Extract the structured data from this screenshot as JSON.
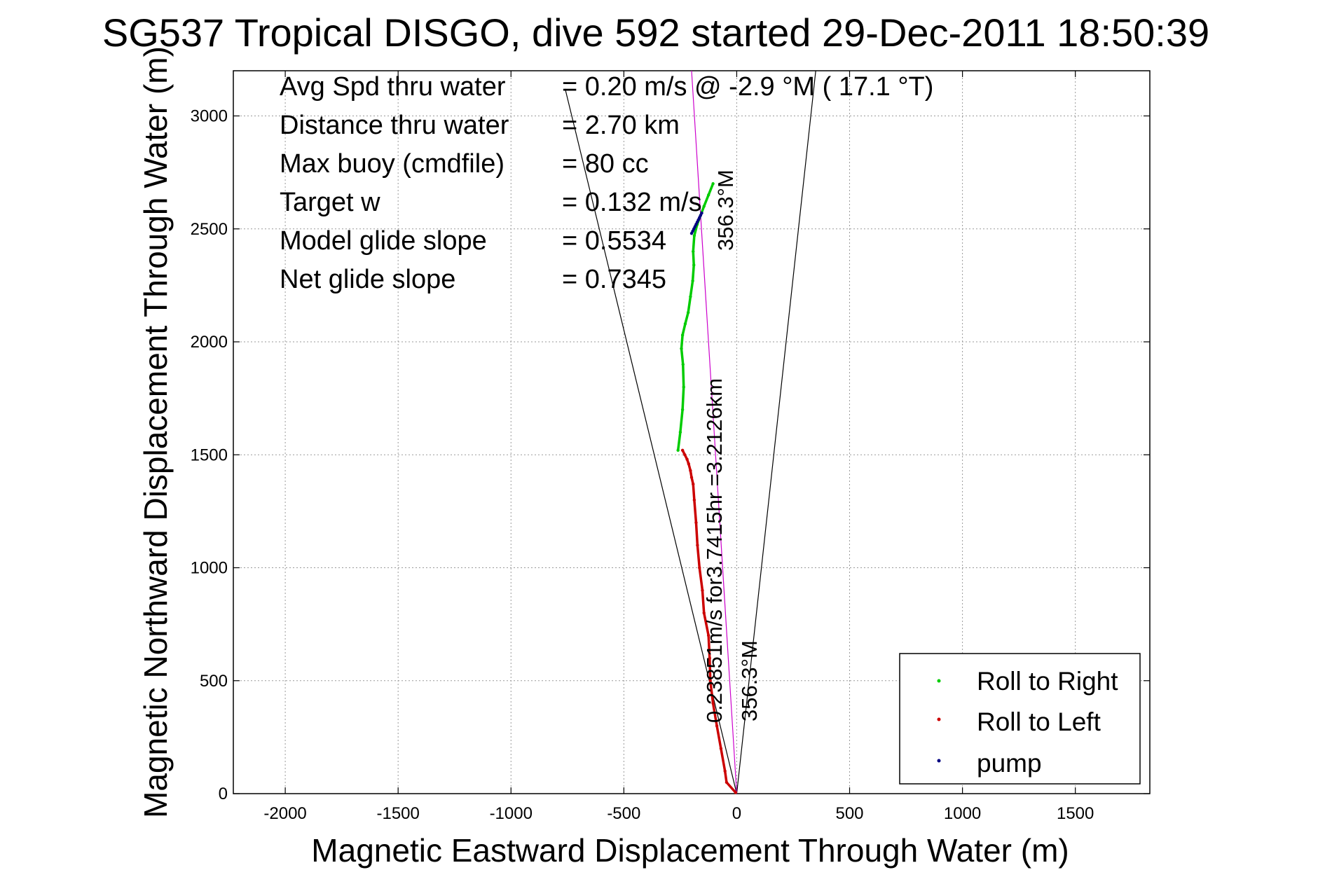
{
  "chart_data": {
    "type": "line",
    "title": "SG537 Tropical DISGO, dive 592 started 29-Dec-2011 18:50:39",
    "xlabel": "Magnetic Eastward Displacement Through Water (m)",
    "ylabel": "Magnetic Northward Displacement Through Water (m)",
    "xlim": [
      -2230,
      1830
    ],
    "ylim": [
      0,
      3200
    ],
    "xticks": [
      -2000,
      -1500,
      -1000,
      -500,
      0,
      500,
      1000,
      1500
    ],
    "yticks": [
      0,
      500,
      1000,
      1500,
      2000,
      2500,
      3000
    ],
    "grid": true,
    "legend_position": "bottom-right",
    "stats": [
      {
        "label": "Avg Spd thru water",
        "value": "=  0.20 m/s @  -2.9 °M ( 17.1 °T)"
      },
      {
        "label": "Distance thru water",
        "value": "=  2.70 km"
      },
      {
        "label": "Max buoy (cmdfile)",
        "value": "= 80 cc"
      },
      {
        "label": "Target w",
        "value": "= 0.132 m/s"
      },
      {
        "label": "Model glide slope",
        "value": "= 0.5534"
      },
      {
        "label": "Net glide slope",
        "value": "= 0.7345"
      }
    ],
    "annotations": [
      {
        "text": "0.23851m/s for3.7415hr =3.2126km",
        "x": -65,
        "y": 300
      },
      {
        "text": "356.3°M",
        "x": 75,
        "y": 300
      },
      {
        "text": "356.3°M",
        "x": -20,
        "y": 2420
      }
    ],
    "series": [
      {
        "name": "Roll to Right",
        "color": "#00cc00",
        "x": [
          -260,
          -250,
          -240,
          -235,
          -238,
          -245,
          -240,
          -228,
          -215,
          -205,
          -195,
          -190,
          -193,
          -188,
          -175,
          -160,
          -145,
          -125,
          -105
        ],
        "y": [
          1520,
          1600,
          1700,
          1800,
          1900,
          1970,
          2030,
          2080,
          2130,
          2200,
          2270,
          2340,
          2400,
          2470,
          2520,
          2560,
          2600,
          2650,
          2700
        ]
      },
      {
        "name": "Roll to Left",
        "color": "#cc0000",
        "x": [
          -5,
          -45,
          -52,
          -70,
          -88,
          -105,
          -117,
          -120,
          -125,
          -145,
          -152,
          -165,
          -174,
          -180,
          -188,
          -193,
          -200,
          -205,
          -213,
          -220,
          -230,
          -240
        ],
        "y": [
          5,
          50,
          100,
          200,
          300,
          400,
          500,
          600,
          700,
          800,
          900,
          1000,
          1100,
          1200,
          1300,
          1370,
          1400,
          1430,
          1460,
          1480,
          1500,
          1520
        ]
      },
      {
        "name": "pump",
        "color": "#000080",
        "x": [
          -200,
          -195,
          -190,
          -185,
          -180,
          -175,
          -170,
          -165,
          -160,
          -155
        ],
        "y": [
          2480,
          2490,
          2500,
          2510,
          2520,
          2530,
          2540,
          2550,
          2560,
          2570
        ]
      }
    ],
    "reference_lines": [
      {
        "color": "#000000",
        "x": [
          0,
          -760
        ],
        "y": [
          0,
          3120
        ]
      },
      {
        "color": "#000000",
        "x": [
          0,
          350
        ],
        "y": [
          0,
          3200
        ]
      },
      {
        "color": "#cc00cc",
        "x": [
          0,
          -200
        ],
        "y": [
          0,
          3200
        ]
      }
    ]
  }
}
